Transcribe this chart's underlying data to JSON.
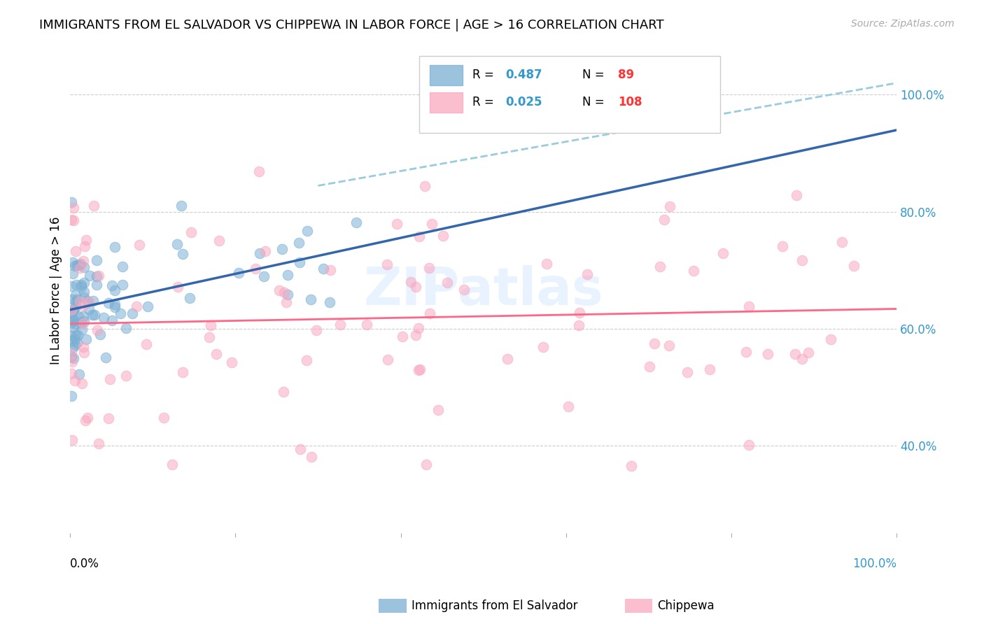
{
  "title": "IMMIGRANTS FROM EL SALVADOR VS CHIPPEWA IN LABOR FORCE | AGE > 16 CORRELATION CHART",
  "source": "Source: ZipAtlas.com",
  "ylabel": "In Labor Force | Age > 16",
  "right_yticks": [
    "40.0%",
    "60.0%",
    "80.0%",
    "100.0%"
  ],
  "right_ytick_values": [
    0.4,
    0.6,
    0.8,
    1.0
  ],
  "color_blue": "#7BAFD4",
  "color_pink": "#F9A8C0",
  "color_line_blue": "#3366AA",
  "color_line_pink": "#FF6688",
  "color_dashed": "#99CCDD",
  "watermark": "ZIPatlas",
  "legend_r1_val": "0.487",
  "legend_n1_val": "89",
  "legend_r2_val": "0.025",
  "legend_n2_val": "108",
  "legend_color_r": "#3399CC",
  "legend_color_n": "#FF3333"
}
